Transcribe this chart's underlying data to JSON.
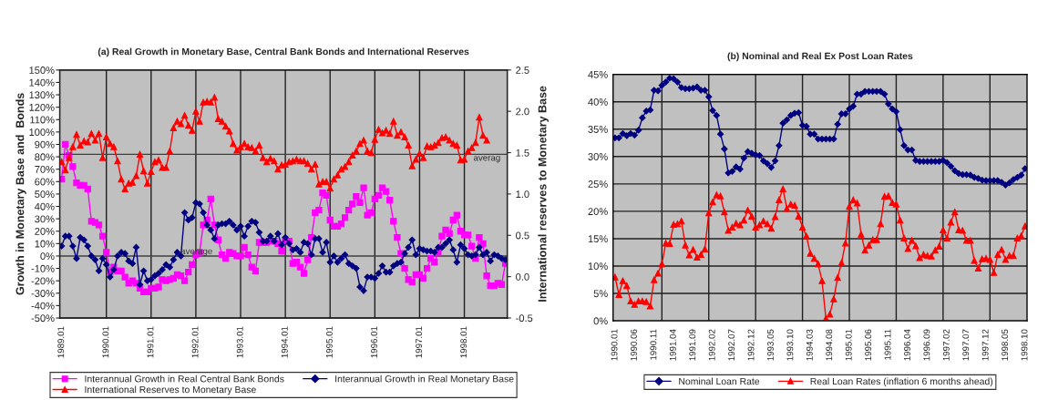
{
  "chart_data": [
    {
      "type": "line",
      "title": "(a) Real Growth in Monetary Base, Central Bank Bonds and International Reserves",
      "ylabel": "Growth in Monetary Base and  Bonds",
      "y2label": "International reserves to Monetary Base",
      "categories": [
        "1989.01",
        null,
        null,
        null,
        null,
        null,
        null,
        null,
        null,
        null,
        null,
        null,
        "1990.01",
        null,
        null,
        null,
        null,
        null,
        null,
        null,
        null,
        null,
        null,
        null,
        "1991.01",
        null,
        null,
        null,
        null,
        null,
        null,
        null,
        null,
        null,
        null,
        null,
        "1992.01",
        null,
        null,
        null,
        null,
        null,
        null,
        null,
        null,
        null,
        null,
        null,
        "1993.01",
        null,
        null,
        null,
        null,
        null,
        null,
        null,
        null,
        null,
        null,
        null,
        "1994.01",
        null,
        null,
        null,
        null,
        null,
        null,
        null,
        null,
        null,
        null,
        null,
        "1995.01",
        null,
        null,
        null,
        null,
        null,
        null,
        null,
        null,
        null,
        null,
        null,
        "1996.01",
        null,
        null,
        null,
        null,
        null,
        null,
        null,
        null,
        null,
        null,
        null,
        "1997.01",
        null,
        null,
        null,
        null,
        null,
        null,
        null,
        null,
        null,
        null,
        null,
        "1998.01",
        null,
        null,
        null,
        null,
        null,
        null,
        null,
        null,
        null,
        null,
        null
      ],
      "series": [
        {
          "name": "Interannual Growth in Real Central Bank Bonds",
          "color": "#ff00ff",
          "marker": "square",
          "values": [
            62,
            90,
            81,
            72,
            59,
            57,
            57,
            54,
            28,
            27,
            25,
            16,
            3,
            -13,
            -9,
            -12,
            -12,
            -17,
            -22,
            -20,
            -22,
            -26,
            -29,
            -29,
            -26,
            -26,
            -25,
            -19,
            -20,
            -19,
            -18,
            -15,
            -16,
            -20,
            -13,
            -7,
            1,
            3,
            25,
            29,
            46,
            25,
            13,
            1,
            -2,
            3,
            2,
            0,
            0,
            7,
            1,
            -9,
            -12,
            11,
            11,
            11,
            12,
            12,
            10,
            4,
            12,
            12,
            -6,
            -5,
            -9,
            -14,
            -3,
            15,
            35,
            37,
            51,
            49,
            29,
            24,
            24,
            26,
            31,
            37,
            42,
            48,
            43,
            55,
            33,
            35,
            46,
            49,
            55,
            52,
            45,
            28,
            15,
            2,
            -10,
            -19,
            -21,
            -15,
            -15,
            -18,
            -10,
            -2,
            -5,
            3,
            16,
            21,
            18,
            29,
            33,
            20,
            17,
            17,
            8,
            -2,
            15,
            10,
            -16,
            -24,
            -24,
            -22,
            -23,
            -6
          ]
        },
        {
          "name": "Interannual Growth in Real Monetary Base",
          "color": "#000080",
          "marker": "diamond",
          "values": [
            8,
            16,
            16,
            8,
            -2,
            15,
            13,
            8,
            0,
            -3,
            -12,
            -2,
            -7,
            -17,
            -11,
            0,
            3,
            2,
            -4,
            -6,
            7,
            -23,
            -12,
            -20,
            -19,
            -16,
            -14,
            -11,
            -7,
            -9,
            -3,
            3,
            0,
            35,
            29,
            31,
            43,
            42,
            35,
            25,
            21,
            14,
            25,
            26,
            26,
            28,
            25,
            21,
            24,
            16,
            24,
            28,
            27,
            19,
            12,
            12,
            16,
            12,
            18,
            9,
            15,
            10,
            5,
            6,
            3,
            11,
            10,
            1,
            14,
            14,
            3,
            11,
            -5,
            0,
            -5,
            -2,
            1,
            -6,
            -8,
            -10,
            -25,
            -28,
            -17,
            -17,
            -18,
            -14,
            -8,
            -13,
            -13,
            -8,
            -6,
            -5,
            2,
            7,
            13,
            1,
            6,
            5,
            4,
            4,
            3,
            7,
            7,
            10,
            13,
            5,
            -5,
            9,
            6,
            1,
            0,
            1,
            7,
            1,
            3,
            -4,
            1,
            0,
            -2,
            -3
          ]
        },
        {
          "name": "International Reserves to Monetary Base",
          "color": "#ff0000",
          "marker": "triangle",
          "axis": "y2",
          "values": [
            1.39,
            1.29,
            1.44,
            1.57,
            1.72,
            1.59,
            1.64,
            1.63,
            1.73,
            1.65,
            1.73,
            1.44,
            1.69,
            1.61,
            1.57,
            1.4,
            1.18,
            1.06,
            1.13,
            1.14,
            1.22,
            1.48,
            1.28,
            1.13,
            1.27,
            1.39,
            1.41,
            1.32,
            1.32,
            1.52,
            1.8,
            1.88,
            1.85,
            1.95,
            1.83,
            1.77,
            2.0,
            1.88,
            2.11,
            2.12,
            2.11,
            2.17,
            1.91,
            1.88,
            1.82,
            1.76,
            1.61,
            1.53,
            1.57,
            1.61,
            1.57,
            1.56,
            1.52,
            1.59,
            1.44,
            1.39,
            1.43,
            1.4,
            1.3,
            1.35,
            1.36,
            1.39,
            1.4,
            1.42,
            1.4,
            1.4,
            1.37,
            1.3,
            1.36,
            1.12,
            1.15,
            1.15,
            1.07,
            1.18,
            1.23,
            1.3,
            1.33,
            1.39,
            1.47,
            1.52,
            1.61,
            1.65,
            1.52,
            1.5,
            1.66,
            1.78,
            1.74,
            1.77,
            1.73,
            1.88,
            1.71,
            1.75,
            1.69,
            1.59,
            1.34,
            1.42,
            1.49,
            1.44,
            1.58,
            1.57,
            1.59,
            1.62,
            1.68,
            1.69,
            1.65,
            1.61,
            1.59,
            1.41,
            1.42,
            1.52,
            1.56,
            1.62,
            1.93,
            1.71,
            1.65,
            null,
            null,
            null,
            null,
            null
          ]
        }
      ],
      "ylim": [
        -50,
        150
      ],
      "yticks": [
        {
          "value": -50,
          "label": "-50%"
        },
        {
          "value": -40,
          "label": "-40%"
        },
        {
          "value": -30,
          "label": "-30%"
        },
        {
          "value": -20,
          "label": "-20%"
        },
        {
          "value": -10,
          "label": "-10%"
        },
        {
          "value": 0,
          "label": "0%"
        },
        {
          "value": 10,
          "label": "10%"
        },
        {
          "value": 20,
          "label": "20%"
        },
        {
          "value": 30,
          "label": "30%"
        },
        {
          "value": 40,
          "label": "40%"
        },
        {
          "value": 50,
          "label": "50%"
        },
        {
          "value": 60,
          "label": "60%"
        },
        {
          "value": 70,
          "label": "70%"
        },
        {
          "value": 80,
          "label": "80%"
        },
        {
          "value": 90,
          "label": "90%"
        },
        {
          "value": 100,
          "label": "100%"
        },
        {
          "value": 110,
          "label": "110%"
        },
        {
          "value": 120,
          "label": "120%"
        },
        {
          "value": 130,
          "label": "130%"
        },
        {
          "value": 140,
          "label": "140%"
        },
        {
          "value": 150,
          "label": "150%"
        }
      ],
      "y2lim": [
        -0.5,
        2.5
      ],
      "y2ticks": [
        -0.5,
        {
          "value": 0,
          "label": "0.0"
        },
        0.5,
        {
          "value": 1,
          "label": "1.0"
        },
        1.5,
        {
          "value": 2,
          "label": "2.0"
        },
        2.5
      ],
      "ref_lines": [
        {
          "axis": "y",
          "value": 0,
          "label": "average",
          "color": "#404040"
        },
        {
          "axis": "y2",
          "value": 1.48,
          "label": "averag",
          "color": "#404040"
        }
      ],
      "grid": "x",
      "legend": "bottom"
    },
    {
      "type": "line",
      "title": "(b) Nominal and Real Ex Post Loan Rates",
      "categories": [
        "1990.01",
        null,
        null,
        null,
        null,
        "1990.06",
        null,
        null,
        null,
        null,
        "1990.11",
        null,
        null,
        null,
        null,
        "1991.04",
        null,
        null,
        null,
        null,
        "1991.09",
        null,
        null,
        null,
        null,
        "1992.02",
        null,
        null,
        null,
        null,
        "1992.07",
        null,
        null,
        null,
        null,
        "1992.12",
        null,
        null,
        null,
        null,
        "1993.05",
        null,
        null,
        null,
        null,
        "1993.10",
        null,
        null,
        null,
        null,
        "1994.03",
        null,
        null,
        null,
        null,
        "1994.08",
        null,
        null,
        null,
        null,
        "1995.01",
        null,
        null,
        null,
        null,
        "1995.06",
        null,
        null,
        null,
        null,
        "1995.11",
        null,
        null,
        null,
        null,
        "1996.04",
        null,
        null,
        null,
        null,
        "1996.09",
        null,
        null,
        null,
        null,
        "1997.02",
        null,
        null,
        null,
        null,
        "1997.07",
        null,
        null,
        null,
        null,
        "1997.12",
        null,
        null,
        null,
        null,
        "1998.05",
        null,
        null,
        null,
        null,
        "1998.10"
      ],
      "series": [
        {
          "name": "Nominal Loan Rate",
          "color": "#000080",
          "marker": "diamond",
          "values": [
            33.4,
            33.4,
            34.2,
            33.8,
            34.2,
            33.9,
            34.8,
            37.1,
            38.3,
            38.5,
            42.1,
            42.0,
            43.0,
            43.6,
            44.3,
            44.2,
            43.6,
            42.6,
            42.4,
            42.4,
            42.5,
            42.7,
            42.1,
            42.1,
            40.9,
            38.4,
            37.5,
            34.1,
            31.4,
            27.0,
            27.3,
            28.1,
            27.7,
            29.7,
            30.9,
            30.6,
            30.3,
            30.2,
            29.2,
            28.7,
            28.0,
            29.2,
            32.0,
            36.1,
            36.7,
            37.5,
            37.9,
            38.0,
            35.7,
            35.5,
            34.1,
            34.1,
            33.2,
            33.2,
            33.2,
            33.2,
            33.2,
            35.9,
            37.8,
            37.8,
            38.7,
            39.2,
            41.4,
            41.4,
            41.9,
            41.9,
            41.9,
            41.9,
            41.9,
            41.4,
            39.6,
            38.7,
            38.2,
            34.9,
            32.0,
            31.2,
            31.2,
            29.3,
            29.1,
            29.1,
            29.1,
            29.1,
            29.1,
            29.1,
            29.3,
            28.9,
            28.2,
            27.4,
            26.9,
            26.7,
            26.7,
            26.6,
            26.2,
            26.0,
            25.7,
            25.6,
            25.6,
            25.6,
            25.6,
            25.3,
            24.8,
            25.2,
            25.8,
            26.2,
            26.6,
            27.8
          ]
        },
        {
          "name": "Real Loan Rates (inflation 6 months ahead)",
          "color": "#ff0000",
          "marker": "triangle",
          "values": [
            8.0,
            4.8,
            7.3,
            6.4,
            3.6,
            3.0,
            3.6,
            3.6,
            3.5,
            2.7,
            7.5,
            8.7,
            10.4,
            14.2,
            14.1,
            17.6,
            17.7,
            18.2,
            13.8,
            12.0,
            13.0,
            11.6,
            12.1,
            13.1,
            19.7,
            21.7,
            23.0,
            22.8,
            19.9,
            16.5,
            17.1,
            17.8,
            17.5,
            18.4,
            20.2,
            19.1,
            17.1,
            17.5,
            18.2,
            17.7,
            16.9,
            19.0,
            22.1,
            24.1,
            20.5,
            21.3,
            21.1,
            19.1,
            17.1,
            15.5,
            12.3,
            11.4,
            10.4,
            7.3,
            0.4,
            1.2,
            4.0,
            7.9,
            10.6,
            14.2,
            20.9,
            22.1,
            21.5,
            15.8,
            12.9,
            13.8,
            14.8,
            14.8,
            17.7,
            22.7,
            22.8,
            21.6,
            21.3,
            18.4,
            15.1,
            13.2,
            14.7,
            13.7,
            11.5,
            12.1,
            11.9,
            11.8,
            12.9,
            13.6,
            16.6,
            15.1,
            18.0,
            19.9,
            16.6,
            16.5,
            14.7,
            14.7,
            11.0,
            9.6,
            11.3,
            11.4,
            11.2,
            8.8,
            12.1,
            13.0,
            11.2,
            11.9,
            11.9,
            15.1,
            15.5,
            17.3
          ]
        }
      ],
      "ylim": [
        0,
        45
      ],
      "yticks": [
        {
          "value": 0,
          "label": "0%"
        },
        {
          "value": 5,
          "label": "5%"
        },
        {
          "value": 10,
          "label": "10%"
        },
        {
          "value": 15,
          "label": "15%"
        },
        {
          "value": 20,
          "label": "20%"
        },
        {
          "value": 25,
          "label": "25%"
        },
        {
          "value": 30,
          "label": "30%"
        },
        {
          "value": 35,
          "label": "35%"
        },
        {
          "value": 40,
          "label": "40%"
        },
        {
          "value": 45,
          "label": "45%"
        }
      ],
      "grid": true,
      "legend": "bottom"
    }
  ]
}
